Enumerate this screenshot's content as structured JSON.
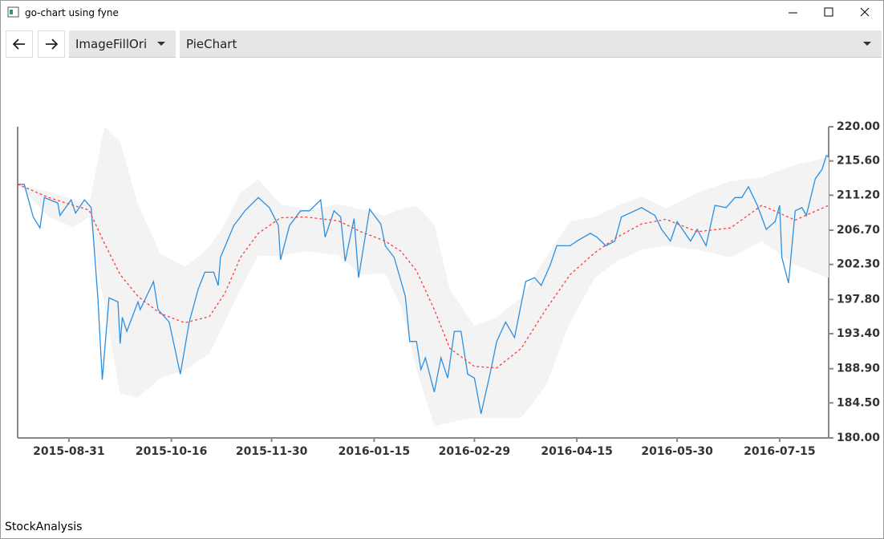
{
  "window": {
    "title": "go-chart using fyne"
  },
  "toolbar": {
    "select_1": "ImageFillOri",
    "select_2": "PieChart"
  },
  "status": "StockAnalysis",
  "chart_data": {
    "type": "line",
    "xlim": [
      "2015-08-08",
      "2016-08-06"
    ],
    "xticks": [
      "2015-08-31",
      "2015-10-16",
      "2015-11-30",
      "2016-01-15",
      "2016-02-29",
      "2016-04-15",
      "2016-05-30",
      "2016-07-15"
    ],
    "ylim": [
      180,
      220
    ],
    "yticks": [
      {
        "value": 180,
        "label": "180.00"
      },
      {
        "value": 184.5,
        "label": "184.50"
      },
      {
        "value": 188.9,
        "label": "188.90"
      },
      {
        "value": 193.4,
        "label": "193.40"
      },
      {
        "value": 197.8,
        "label": "197.80"
      },
      {
        "value": 202.3,
        "label": "202.30"
      },
      {
        "value": 206.7,
        "label": "206.70"
      },
      {
        "value": 211.2,
        "label": "211.20"
      },
      {
        "value": 215.6,
        "label": "215.60"
      },
      {
        "value": 220,
        "label": "220.00"
      }
    ],
    "x": [
      "2015-08-08",
      "2015-08-11",
      "2015-08-15",
      "2015-08-18",
      "2015-08-20",
      "2015-08-26",
      "2015-08-27",
      "2015-09-01",
      "2015-09-03",
      "2015-09-07",
      "2015-09-10",
      "2015-09-13",
      "2015-09-15",
      "2015-09-18",
      "2015-09-22",
      "2015-09-23",
      "2015-09-24",
      "2015-09-26",
      "2015-10-01",
      "2015-10-02",
      "2015-10-08",
      "2015-10-10",
      "2015-10-15",
      "2015-10-20",
      "2015-10-24",
      "2015-10-28",
      "2015-10-31",
      "2015-11-04",
      "2015-11-06",
      "2015-11-07",
      "2015-11-13",
      "2015-11-16",
      "2015-11-18",
      "2015-11-24",
      "2015-11-29",
      "2015-12-03",
      "2015-12-04",
      "2015-12-08",
      "2015-12-13",
      "2015-12-17",
      "2015-12-22",
      "2015-12-24",
      "2015-12-28",
      "2015-12-31",
      "2016-01-02",
      "2016-01-06",
      "2016-01-08",
      "2016-01-13",
      "2016-01-18",
      "2016-01-20",
      "2016-01-24",
      "2016-01-29",
      "2016-01-31",
      "2016-02-03",
      "2016-02-05",
      "2016-02-07",
      "2016-02-11",
      "2016-02-14",
      "2016-02-17",
      "2016-02-20",
      "2016-02-23",
      "2016-02-26",
      "2016-02-29",
      "2016-03-03",
      "2016-03-07",
      "2016-03-10",
      "2016-03-14",
      "2016-03-18",
      "2016-03-23",
      "2016-03-27",
      "2016-03-30",
      "2016-04-03",
      "2016-04-06",
      "2016-04-12",
      "2016-04-15",
      "2016-04-21",
      "2016-04-24",
      "2016-04-28",
      "2016-05-02",
      "2016-05-05",
      "2016-05-11",
      "2016-05-14",
      "2016-05-20",
      "2016-05-23",
      "2016-05-27",
      "2016-05-30",
      "2016-06-05",
      "2016-06-08",
      "2016-06-12",
      "2016-06-16",
      "2016-06-21",
      "2016-06-25",
      "2016-06-28",
      "2016-07-01",
      "2016-07-05",
      "2016-07-09",
      "2016-07-13",
      "2016-07-15",
      "2016-07-16",
      "2016-07-19",
      "2016-07-22",
      "2016-07-25",
      "2016-07-27",
      "2016-07-31",
      "2016-08-03",
      "2016-08-05",
      "2016-08-06"
    ],
    "series": [
      {
        "color": "#2b8fe0",
        "values": [
          212.6,
          212.6,
          208.4,
          207.0,
          210.9,
          210.2,
          208.6,
          210.6,
          208.9,
          210.6,
          209.6,
          198.0,
          187.5,
          198.0,
          197.5,
          192.1,
          195.5,
          193.7,
          197.5,
          196.5,
          200.1,
          196.5,
          194.9,
          188.2,
          194.9,
          199.1,
          201.3,
          201.3,
          199.6,
          203.2,
          207.3,
          208.4,
          209.2,
          210.9,
          209.6,
          207.3,
          202.9,
          207.3,
          209.2,
          209.2,
          210.6,
          205.8,
          209.2,
          208.4,
          202.7,
          208.2,
          200.6,
          209.4,
          207.5,
          204.7,
          203.2,
          198.2,
          192.4,
          192.4,
          188.8,
          190.3,
          185.9,
          190.3,
          187.7,
          193.7,
          193.7,
          188.2,
          187.7,
          183.1,
          188.2,
          192.4,
          194.9,
          192.9,
          200.1,
          200.6,
          199.6,
          202.2,
          204.7,
          204.7,
          205.3,
          206.3,
          205.8,
          204.7,
          205.3,
          208.4,
          209.2,
          209.6,
          208.6,
          206.8,
          205.3,
          207.8,
          205.3,
          206.8,
          204.7,
          209.9,
          209.6,
          210.9,
          210.9,
          212.3,
          209.9,
          206.8,
          207.8,
          209.9,
          203.2,
          199.9,
          209.2,
          209.6,
          208.6,
          213.3,
          214.5,
          216.3,
          216.1
        ]
      },
      {
        "color": "#ff3b3b",
        "band_color": "#f3f3f3",
        "x": [
          "2015-08-08",
          "2015-08-22",
          "2015-09-02",
          "2015-09-09",
          "2015-09-16",
          "2015-09-23",
          "2015-10-01",
          "2015-10-11",
          "2015-10-22",
          "2015-11-02",
          "2015-11-09",
          "2015-11-16",
          "2015-11-24",
          "2015-12-04",
          "2015-12-15",
          "2015-12-30",
          "2016-01-09",
          "2016-01-20",
          "2016-01-27",
          "2016-02-03",
          "2016-02-11",
          "2016-02-18",
          "2016-02-29",
          "2016-03-10",
          "2016-03-21",
          "2016-04-01",
          "2016-04-12",
          "2016-04-23",
          "2016-05-03",
          "2016-05-14",
          "2016-05-25",
          "2016-06-08",
          "2016-06-23",
          "2016-07-07",
          "2016-07-22",
          "2016-08-06"
        ],
        "values": [
          212.6,
          210.9,
          209.9,
          209.3,
          205.0,
          201.0,
          198.2,
          196.0,
          194.8,
          195.6,
          198.6,
          203.2,
          206.3,
          208.3,
          208.4,
          207.9,
          206.5,
          205.3,
          204.0,
          201.5,
          196.5,
          191.5,
          189.2,
          189.0,
          191.5,
          196.5,
          201.0,
          203.8,
          205.8,
          207.5,
          208.1,
          206.5,
          207.0,
          209.9,
          208.0,
          209.9
        ],
        "upper": [
          212.6,
          211.6,
          210.7,
          209.9,
          220.0,
          218.1,
          210.0,
          203.7,
          202.0,
          204.5,
          207.5,
          211.5,
          213.3,
          210.0,
          209.4,
          210.0,
          209.4,
          208.6,
          209.4,
          209.8,
          207.4,
          199.1,
          194.4,
          195.5,
          198.0,
          203.2,
          207.8,
          208.4,
          209.8,
          211.0,
          209.5,
          211.5,
          213.0,
          213.5,
          215.1,
          216.1
        ],
        "lower": [
          212.6,
          208.4,
          207.1,
          208.4,
          197.0,
          185.7,
          185.2,
          187.7,
          188.7,
          190.8,
          194.9,
          199.1,
          203.4,
          203.4,
          204.0,
          203.5,
          201.0,
          201.1,
          197.0,
          188.8,
          181.5,
          182.0,
          182.6,
          182.6,
          182.6,
          186.7,
          194.9,
          200.6,
          202.7,
          204.2,
          204.7,
          204.2,
          203.2,
          205.3,
          202.2,
          200.6
        ]
      }
    ]
  }
}
